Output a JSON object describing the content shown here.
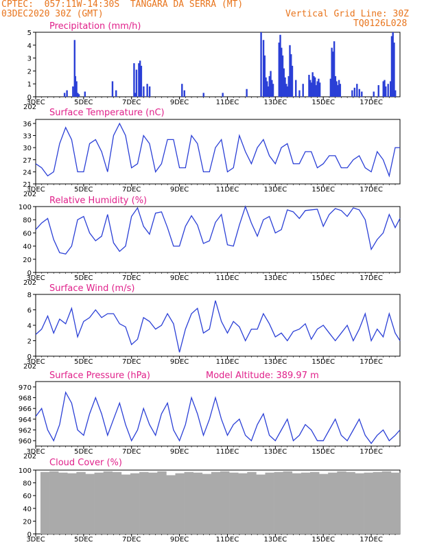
{
  "header": {
    "left_line1": "CPTEC:  057:11W-14:30S  TANGARA DA SERRA (MT)",
    "left_line2": "03DEC2020 30Z (GMT)",
    "right_line2": "Vertical Grid Line: 30Z",
    "right_line3": "TQ0126L028"
  },
  "colors": {
    "line": "#2a3fd6",
    "bar": "#2a3fd6",
    "cloud": "#aaaaaa",
    "title": "#e0208a",
    "header": "#e8741c"
  },
  "x_axis": {
    "labels": [
      "3DEC",
      "5DEC",
      "7DEC",
      "9DEC",
      "11DEC",
      "13DEC",
      "15DEC",
      "17DEC"
    ],
    "label_days": [
      0,
      2,
      4,
      6,
      8,
      10,
      12,
      14
    ],
    "range_days": [
      0,
      15.2
    ],
    "year_label": "202"
  },
  "chart_data": [
    {
      "type": "bar",
      "title": "Precipitation (mm/h)",
      "ylim": [
        0,
        5
      ],
      "yticks": [
        "0",
        "1",
        "2",
        "3",
        "4",
        "5"
      ],
      "x_days": [
        1.2,
        1.3,
        1.55,
        1.62,
        1.65,
        1.7,
        1.75,
        1.8,
        2.05,
        3.2,
        3.35,
        4.1,
        4.15,
        4.2,
        4.3,
        4.35,
        4.4,
        4.5,
        4.65,
        4.75,
        6.1,
        6.2,
        7.0,
        7.8,
        8.8,
        9.4,
        9.5,
        9.55,
        9.6,
        9.65,
        9.7,
        9.75,
        9.8,
        9.85,
        9.9,
        10.15,
        10.2,
        10.25,
        10.3,
        10.35,
        10.4,
        10.45,
        10.5,
        10.55,
        10.6,
        10.65,
        10.7,
        10.85,
        11.0,
        11.15,
        11.4,
        11.45,
        11.5,
        11.55,
        11.6,
        11.65,
        11.7,
        11.75,
        11.8,
        11.85,
        12.3,
        12.35,
        12.4,
        12.45,
        12.5,
        12.55,
        12.6,
        12.65,
        12.7,
        13.2,
        13.3,
        13.4,
        13.5,
        13.6,
        14.1,
        14.3,
        14.5,
        14.55,
        14.6,
        14.7,
        14.8,
        14.85,
        14.9,
        14.95,
        15.0
      ],
      "values": [
        0.3,
        0.5,
        0.8,
        4.4,
        1.6,
        1.2,
        0.3,
        0.2,
        0.4,
        1.2,
        0.5,
        2.6,
        0.3,
        2.1,
        2.6,
        2.8,
        2.4,
        0.8,
        1.0,
        0.8,
        1.0,
        0.5,
        0.3,
        0.3,
        0.6,
        5.0,
        4.4,
        3.2,
        1.5,
        1.2,
        0.8,
        1.6,
        2.0,
        1.3,
        1.0,
        4.2,
        4.8,
        3.8,
        3.2,
        2.2,
        1.5,
        1.0,
        0.8,
        1.6,
        4.0,
        3.3,
        2.4,
        1.3,
        0.5,
        1.0,
        1.7,
        1.3,
        1.1,
        1.9,
        1.6,
        1.5,
        0.9,
        1.2,
        1.4,
        1.1,
        1.4,
        3.8,
        3.5,
        4.3,
        1.6,
        1.2,
        0.9,
        1.3,
        1.0,
        0.5,
        0.7,
        1.0,
        0.6,
        0.4,
        0.4,
        0.9,
        1.2,
        1.3,
        0.8,
        1.0,
        1.2,
        4.7,
        5.0,
        4.2,
        0.5
      ]
    },
    {
      "type": "line",
      "title": "Surface Temperature (nC)",
      "ylim": [
        21,
        37
      ],
      "yticks": [
        "21",
        "24",
        "27",
        "30",
        "33",
        "36"
      ],
      "x_days": [
        0,
        0.25,
        0.5,
        0.75,
        1.0,
        1.25,
        1.5,
        1.75,
        2.0,
        2.25,
        2.5,
        2.75,
        3.0,
        3.25,
        3.5,
        3.75,
        4.0,
        4.25,
        4.5,
        4.75,
        5.0,
        5.25,
        5.5,
        5.75,
        6.0,
        6.25,
        6.5,
        6.75,
        7.0,
        7.25,
        7.5,
        7.75,
        8.0,
        8.25,
        8.5,
        8.75,
        9.0,
        9.25,
        9.5,
        9.75,
        10.0,
        10.25,
        10.5,
        10.75,
        11.0,
        11.25,
        11.5,
        11.75,
        12.0,
        12.25,
        12.5,
        12.75,
        13.0,
        13.25,
        13.5,
        13.75,
        14.0,
        14.25,
        14.5,
        14.75,
        15.0,
        15.2
      ],
      "values": [
        26,
        25,
        23,
        24,
        31,
        35,
        32,
        24,
        24,
        31,
        32,
        29,
        24,
        33,
        36,
        33,
        25,
        26,
        33,
        31,
        24,
        26,
        32,
        32,
        25,
        25,
        33,
        31,
        24,
        24,
        30,
        32,
        24,
        25,
        33,
        29,
        26,
        30,
        32,
        28,
        26,
        30,
        31,
        26,
        26,
        29,
        29,
        25,
        26,
        28,
        28,
        25,
        25,
        27,
        28,
        25,
        24,
        29,
        27,
        23,
        30,
        30
      ]
    },
    {
      "type": "line",
      "title": "Relative Humidity (%)",
      "ylim": [
        0,
        100
      ],
      "yticks": [
        "0",
        "20",
        "40",
        "60",
        "80",
        "100"
      ],
      "x_days": [
        0,
        0.25,
        0.5,
        0.75,
        1.0,
        1.25,
        1.5,
        1.75,
        2.0,
        2.25,
        2.5,
        2.75,
        3.0,
        3.25,
        3.5,
        3.75,
        4.0,
        4.25,
        4.5,
        4.75,
        5.0,
        5.25,
        5.5,
        5.75,
        6.0,
        6.25,
        6.5,
        6.75,
        7.0,
        7.25,
        7.5,
        7.75,
        8.0,
        8.25,
        8.5,
        8.75,
        9.0,
        9.25,
        9.5,
        9.75,
        10.0,
        10.25,
        10.5,
        10.75,
        11.0,
        11.25,
        11.5,
        11.75,
        12.0,
        12.25,
        12.5,
        12.75,
        13.0,
        13.25,
        13.5,
        13.75,
        14.0,
        14.25,
        14.5,
        14.75,
        15.0,
        15.2
      ],
      "values": [
        65,
        75,
        82,
        50,
        30,
        28,
        40,
        80,
        85,
        60,
        48,
        55,
        88,
        45,
        32,
        40,
        85,
        98,
        70,
        58,
        90,
        92,
        68,
        40,
        40,
        70,
        86,
        72,
        44,
        48,
        76,
        88,
        42,
        40,
        72,
        100,
        75,
        55,
        80,
        85,
        60,
        65,
        95,
        92,
        82,
        94,
        95,
        96,
        70,
        88,
        97,
        94,
        85,
        98,
        95,
        80,
        35,
        50,
        60,
        88,
        68,
        82
      ]
    },
    {
      "type": "line",
      "title": "Surface Wind (m/s)",
      "ylim": [
        0,
        8
      ],
      "yticks": [
        "0",
        "2",
        "4",
        "6",
        "8"
      ],
      "x_days": [
        0,
        0.25,
        0.5,
        0.75,
        1.0,
        1.25,
        1.5,
        1.75,
        2.0,
        2.25,
        2.5,
        2.75,
        3.0,
        3.25,
        3.5,
        3.75,
        4.0,
        4.25,
        4.5,
        4.75,
        5.0,
        5.25,
        5.5,
        5.75,
        6.0,
        6.25,
        6.5,
        6.75,
        7.0,
        7.25,
        7.5,
        7.75,
        8.0,
        8.25,
        8.5,
        8.75,
        9.0,
        9.25,
        9.5,
        9.75,
        10.0,
        10.25,
        10.5,
        10.75,
        11.0,
        11.25,
        11.5,
        11.75,
        12.0,
        12.25,
        12.5,
        12.75,
        13.0,
        13.25,
        13.5,
        13.75,
        14.0,
        14.25,
        14.5,
        14.75,
        15.0,
        15.2
      ],
      "values": [
        2.8,
        3.5,
        5.2,
        3.0,
        4.8,
        4.2,
        6.2,
        2.5,
        4.5,
        5.0,
        6.0,
        5.0,
        5.5,
        5.5,
        4.2,
        3.8,
        1.5,
        2.2,
        5.0,
        4.5,
        3.5,
        4.0,
        5.5,
        4.2,
        0.5,
        3.5,
        5.5,
        6.2,
        3.0,
        3.5,
        7.2,
        4.5,
        3.0,
        4.5,
        3.8,
        2.0,
        3.5,
        3.5,
        5.5,
        4.2,
        2.5,
        3.0,
        2.0,
        3.2,
        3.5,
        4.2,
        2.2,
        3.5,
        4.0,
        3.0,
        2.0,
        3.0,
        4.0,
        2.0,
        3.5,
        5.5,
        2.0,
        3.5,
        2.5,
        5.5,
        3.0,
        2.0
      ]
    },
    {
      "type": "line",
      "title": "Surface Pressure (hPa)",
      "subtitle": "Model Altitude: 389.97 m",
      "ylim": [
        959,
        971
      ],
      "yticks": [
        "960",
        "962",
        "964",
        "966",
        "968",
        "970"
      ],
      "x_days": [
        0,
        0.25,
        0.5,
        0.75,
        1.0,
        1.25,
        1.5,
        1.75,
        2.0,
        2.25,
        2.5,
        2.75,
        3.0,
        3.25,
        3.5,
        3.75,
        4.0,
        4.25,
        4.5,
        4.75,
        5.0,
        5.25,
        5.5,
        5.75,
        6.0,
        6.25,
        6.5,
        6.75,
        7.0,
        7.25,
        7.5,
        7.75,
        8.0,
        8.25,
        8.5,
        8.75,
        9.0,
        9.25,
        9.5,
        9.75,
        10.0,
        10.25,
        10.5,
        10.75,
        11.0,
        11.25,
        11.5,
        11.75,
        12.0,
        12.25,
        12.5,
        12.75,
        13.0,
        13.25,
        13.5,
        13.75,
        14.0,
        14.25,
        14.5,
        14.75,
        15.0,
        15.2
      ],
      "values": [
        964.5,
        966,
        962,
        960,
        963,
        969,
        967,
        962,
        961,
        965,
        968,
        965,
        961,
        964,
        967,
        963,
        960,
        962,
        966,
        963,
        961,
        965,
        967,
        962,
        960,
        963,
        968,
        965,
        961,
        964,
        968,
        964,
        961,
        963,
        964,
        961,
        960,
        963,
        965,
        961,
        960,
        962,
        964,
        960,
        961,
        963,
        962,
        960,
        960,
        962,
        964,
        961,
        960,
        962,
        964,
        961,
        959.5,
        961,
        962,
        960,
        961,
        962
      ]
    },
    {
      "type": "bar",
      "title": "Cloud Cover (%)",
      "ylim": [
        0,
        100
      ],
      "yticks": [
        "0",
        "20",
        "40",
        "60",
        "80",
        "100"
      ],
      "x_range": [
        0.2,
        15.2
      ],
      "values": [
        97,
        98,
        96,
        95,
        97,
        94,
        96,
        98,
        97,
        93,
        95,
        97,
        96,
        98,
        92,
        95,
        97,
        96,
        94,
        97,
        98,
        96,
        95,
        97,
        93,
        96,
        97,
        98,
        95,
        96,
        97,
        94,
        96,
        98,
        97,
        95,
        96,
        97,
        98,
        96
      ]
    }
  ]
}
